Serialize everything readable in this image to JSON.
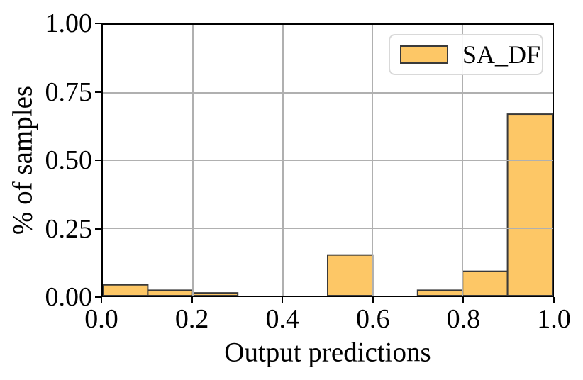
{
  "figure": {
    "xlabel": "Output predictions",
    "ylabel": "% of samples",
    "legend": {
      "label": "SA_DF"
    }
  },
  "chart_data": {
    "type": "bar",
    "subtype": "histogram",
    "title": "",
    "xlabel": "Output predictions",
    "ylabel": "% of samples",
    "series": [
      {
        "name": "SA_DF",
        "bin_edges": [
          0.0,
          0.1,
          0.2,
          0.3,
          0.4,
          0.5,
          0.6,
          0.7,
          0.8,
          0.9,
          1.0
        ],
        "values": [
          0.04,
          0.02,
          0.01,
          0.0,
          0.0,
          0.15,
          0.0,
          0.02,
          0.09,
          0.67
        ]
      }
    ],
    "xlim": [
      0.0,
      1.0
    ],
    "ylim": [
      0.0,
      1.0
    ],
    "x_tick_values": [
      0.0,
      0.2,
      0.4,
      0.6,
      0.8,
      1.0
    ],
    "x_tick_labels": [
      "0.0",
      "0.2",
      "0.4",
      "0.6",
      "0.8",
      "1.0"
    ],
    "y_tick_values": [
      0.0,
      0.25,
      0.5,
      0.75,
      1.0
    ],
    "y_tick_labels": [
      "0.00",
      "0.25",
      "0.50",
      "0.75",
      "1.00"
    ],
    "grid": true,
    "grid_above_bars": true,
    "legend_position": "upper-right",
    "colors": {
      "bar_fill": "#FDC766",
      "bar_edge": "#3A3A3A",
      "grid": "#B0B0B0",
      "spine": "#000000",
      "legend_border": "#D9D9D9",
      "background": "#FFFFFF"
    }
  }
}
